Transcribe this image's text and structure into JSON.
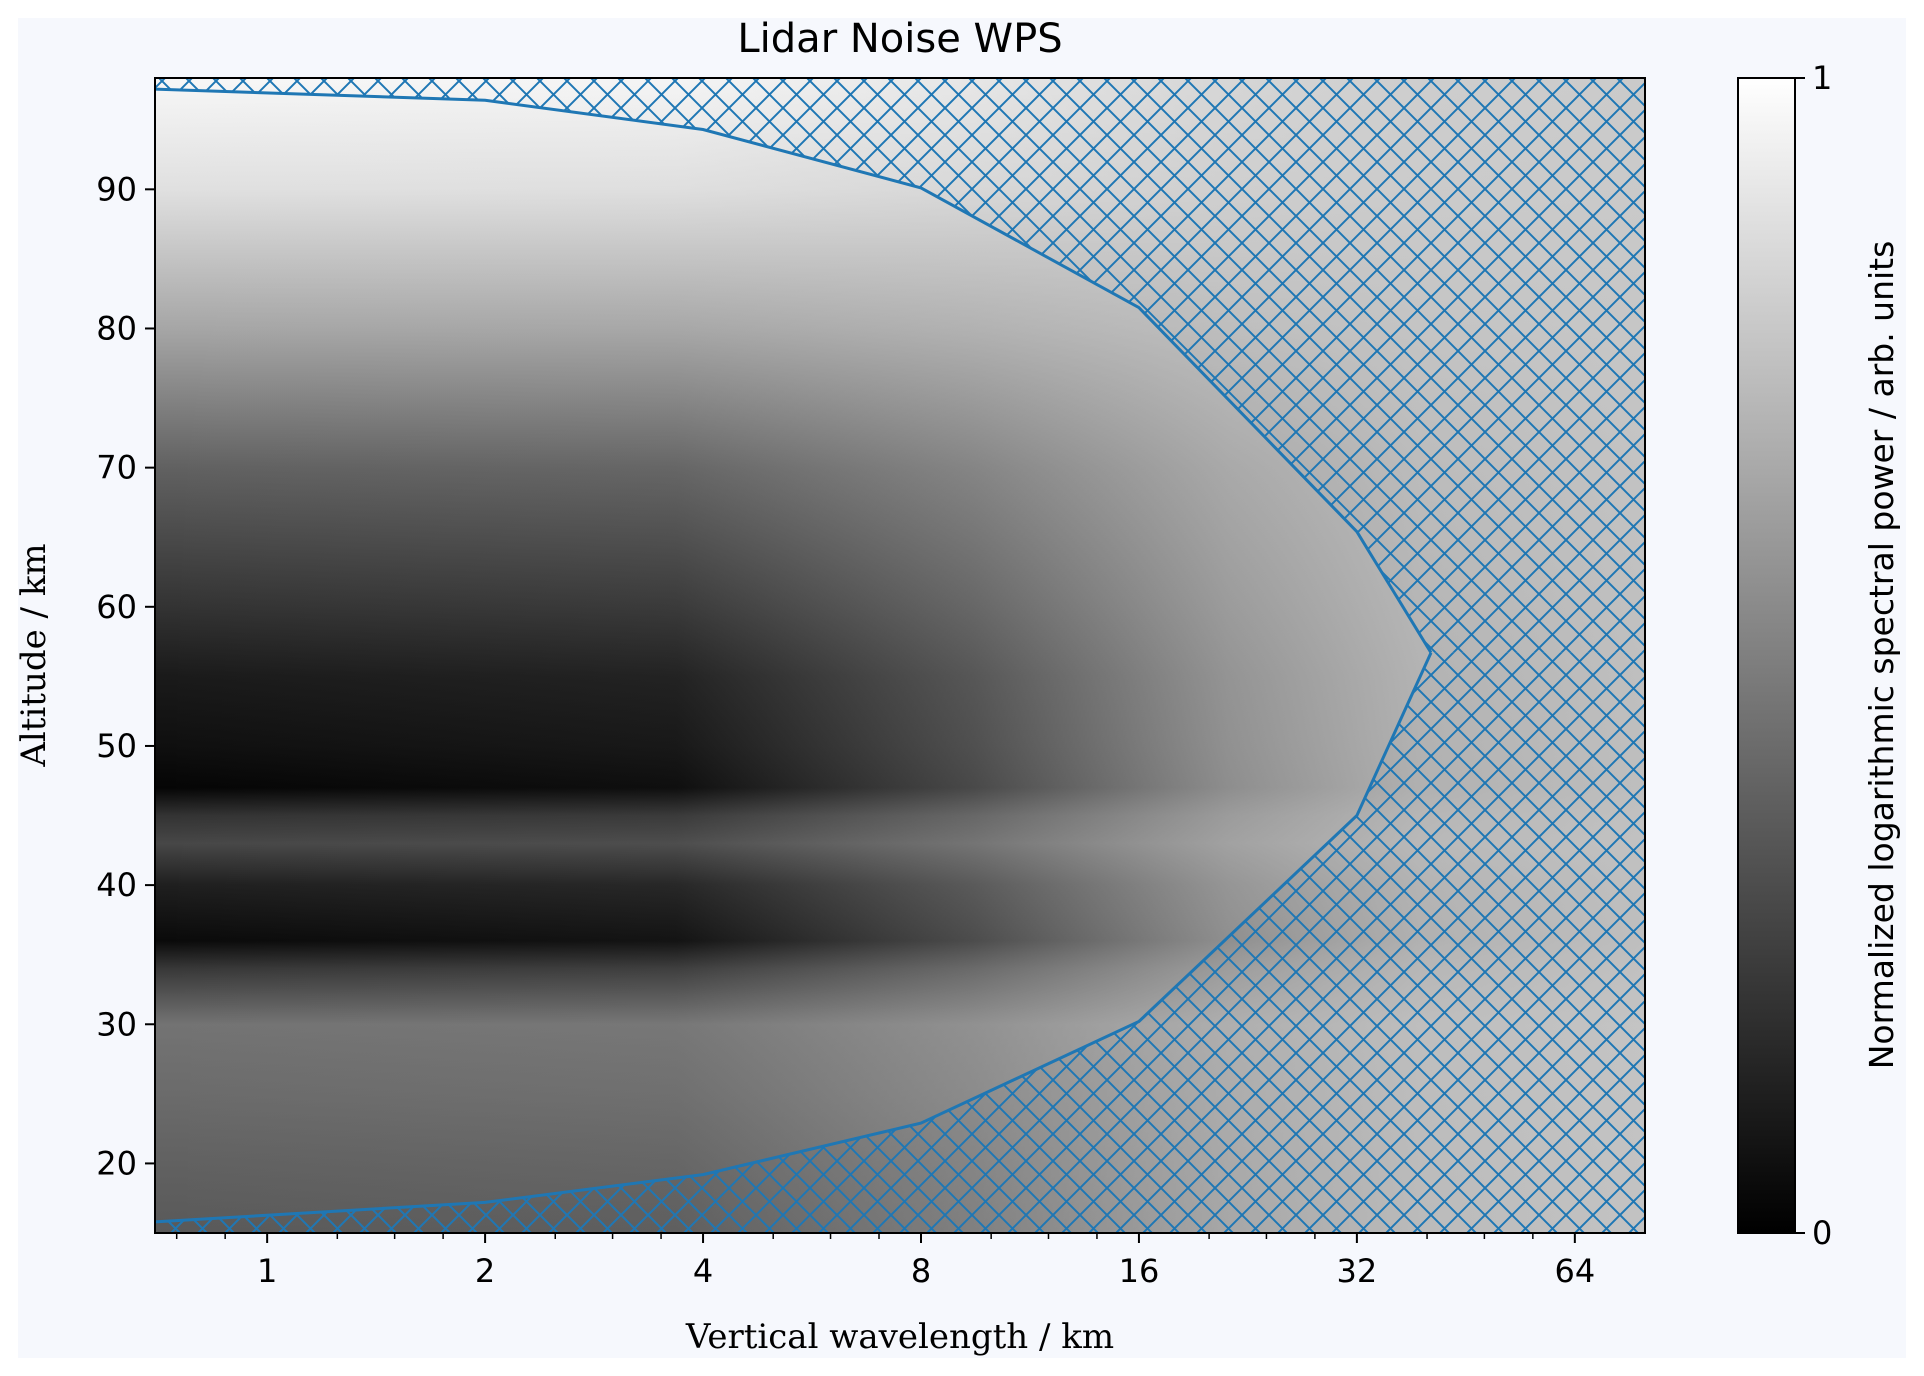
{
  "chart_data": {
    "type": "heatmap",
    "title": "Lidar Noise WPS",
    "xlabel": "Vertical wavelength / km",
    "ylabel": "Altitude / km",
    "x_scale": "log2",
    "xlim": [
      0.7,
      80
    ],
    "ylim": [
      15,
      98
    ],
    "x_ticks": [
      1,
      2,
      4,
      8,
      16,
      32,
      64
    ],
    "x_tick_labels": [
      "1",
      "2",
      "4",
      "8",
      "16",
      "32",
      "64"
    ],
    "y_ticks": [
      20,
      30,
      40,
      50,
      60,
      70,
      80,
      90
    ],
    "y_tick_labels": [
      "20",
      "30",
      "40",
      "50",
      "60",
      "70",
      "80",
      "90"
    ],
    "colormap": "gray",
    "colorbar": {
      "label": "Normalized logarithmic spectral power / arb. units",
      "min": 0,
      "max": 1,
      "tick_labels": [
        "0",
        "1"
      ]
    },
    "cone_of_influence": {
      "color": "#1f77b4",
      "hatch": "cross-hatch",
      "description_points_upper": [
        {
          "x": 0.7,
          "y": 97.2
        },
        {
          "x": 2,
          "y": 96.4
        },
        {
          "x": 4,
          "y": 94.3
        },
        {
          "x": 8,
          "y": 90.1
        },
        {
          "x": 16,
          "y": 81.5
        },
        {
          "x": 32,
          "y": 65.4
        },
        {
          "x": 40.5,
          "y": 56.7
        }
      ],
      "description_points_lower": [
        {
          "x": 0.7,
          "y": 15.8
        },
        {
          "x": 2,
          "y": 17.2
        },
        {
          "x": 4,
          "y": 19.2
        },
        {
          "x": 8,
          "y": 22.9
        },
        {
          "x": 16,
          "y": 30.2
        },
        {
          "x": 32,
          "y": 45.0
        },
        {
          "x": 40.5,
          "y": 56.7
        }
      ]
    },
    "intensity_profile_by_altitude": [
      {
        "altitude": 15,
        "value": 0.35
      },
      {
        "altitude": 20,
        "value": 0.38
      },
      {
        "altitude": 25,
        "value": 0.42
      },
      {
        "altitude": 30,
        "value": 0.45
      },
      {
        "altitude": 34,
        "value": 0.22
      },
      {
        "altitude": 36,
        "value": 0.04
      },
      {
        "altitude": 40,
        "value": 0.12
      },
      {
        "altitude": 43,
        "value": 0.28
      },
      {
        "altitude": 45,
        "value": 0.2
      },
      {
        "altitude": 47,
        "value": 0.02
      },
      {
        "altitude": 50,
        "value": 0.06
      },
      {
        "altitude": 55,
        "value": 0.1
      },
      {
        "altitude": 60,
        "value": 0.2
      },
      {
        "altitude": 70,
        "value": 0.38
      },
      {
        "altitude": 80,
        "value": 0.65
      },
      {
        "altitude": 90,
        "value": 0.88
      },
      {
        "altitude": 98,
        "value": 0.97
      }
    ]
  }
}
